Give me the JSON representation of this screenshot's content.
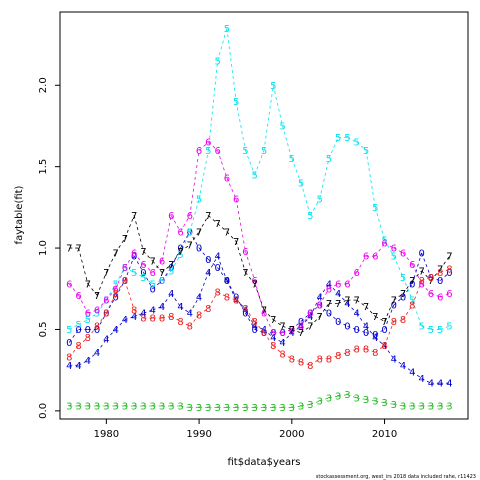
{
  "chart_data": {
    "type": "line",
    "xlabel": "fit$data$years",
    "ylabel": "faytable(fit)",
    "xlim": [
      1975,
      2019
    ],
    "ylim": [
      -0.05,
      2.45
    ],
    "x_ticks": [
      "1980",
      "1990",
      "2000",
      "2010"
    ],
    "y_ticks": [
      "0.0",
      "0.5",
      "1.0",
      "1.5",
      "2.0"
    ],
    "x_tick_values": [
      1980,
      1990,
      2000,
      2010
    ],
    "y_tick_values": [
      0.0,
      0.5,
      1.0,
      1.5,
      2.0
    ],
    "footnote": "stockassessment.org, west_irs 2018 data included rahe, r11423",
    "x": [
      1976,
      1977,
      1978,
      1979,
      1980,
      1981,
      1982,
      1983,
      1984,
      1985,
      1986,
      1987,
      1988,
      1989,
      1990,
      1991,
      1992,
      1993,
      1994,
      1995,
      1996,
      1997,
      1998,
      1999,
      2000,
      2001,
      2002,
      2003,
      2004,
      2005,
      2006,
      2007,
      2008,
      2009,
      2010,
      2011,
      2012,
      2013,
      2014,
      2015,
      2016,
      2017
    ],
    "series": [
      {
        "symbol": "0",
        "color": "#0000cd",
        "values": [
          0.42,
          0.5,
          0.5,
          0.5,
          0.6,
          0.7,
          0.8,
          0.95,
          0.85,
          0.75,
          0.8,
          0.88,
          1.0,
          1.1,
          1.0,
          0.93,
          0.88,
          0.8,
          0.7,
          0.6,
          0.5,
          0.48,
          0.48,
          0.48,
          0.5,
          0.55,
          0.6,
          0.65,
          0.6,
          0.55,
          0.52,
          0.5,
          0.48,
          0.47,
          0.5,
          0.65,
          0.7,
          0.78,
          0.97,
          0.82,
          0.8,
          0.85
        ]
      },
      {
        "symbol": "3",
        "color": "#22bb22",
        "values": [
          0.03,
          0.03,
          0.03,
          0.03,
          0.03,
          0.03,
          0.03,
          0.03,
          0.03,
          0.03,
          0.03,
          0.03,
          0.03,
          0.02,
          0.02,
          0.02,
          0.02,
          0.02,
          0.02,
          0.02,
          0.02,
          0.02,
          0.02,
          0.02,
          0.02,
          0.03,
          0.04,
          0.06,
          0.08,
          0.09,
          0.1,
          0.08,
          0.07,
          0.06,
          0.05,
          0.04,
          0.03,
          0.03,
          0.03,
          0.03,
          0.03,
          0.03
        ]
      },
      {
        "symbol": "4",
        "color": "#0000cd",
        "values": [
          0.28,
          0.28,
          0.31,
          0.36,
          0.44,
          0.5,
          0.56,
          0.58,
          0.6,
          0.62,
          0.64,
          0.72,
          0.64,
          0.6,
          0.7,
          0.85,
          0.95,
          0.8,
          0.68,
          0.62,
          0.52,
          0.5,
          0.45,
          0.42,
          0.48,
          0.52,
          0.58,
          0.7,
          0.78,
          0.72,
          0.66,
          0.6,
          0.52,
          0.45,
          0.4,
          0.32,
          0.28,
          0.24,
          0.2,
          0.17,
          0.17,
          0.17
        ]
      },
      {
        "symbol": "5",
        "color": "#00e5ee",
        "values": [
          0.5,
          0.53,
          0.56,
          0.6,
          0.68,
          0.78,
          0.88,
          0.85,
          0.82,
          0.78,
          0.8,
          0.86,
          0.96,
          1.1,
          1.3,
          1.6,
          2.15,
          2.35,
          1.9,
          1.6,
          1.45,
          1.6,
          2.0,
          1.75,
          1.55,
          1.4,
          1.2,
          1.3,
          1.55,
          1.68,
          1.68,
          1.65,
          1.6,
          1.25,
          1.05,
          0.95,
          0.82,
          0.68,
          0.52,
          0.5,
          0.5,
          0.52
        ]
      },
      {
        "symbol": "6",
        "color": "#ee00ee",
        "values": [
          0.78,
          0.71,
          0.6,
          0.62,
          0.68,
          0.75,
          0.88,
          0.97,
          0.9,
          0.85,
          0.92,
          1.2,
          1.1,
          1.2,
          1.6,
          1.65,
          1.6,
          1.43,
          1.3,
          0.98,
          0.8,
          0.6,
          0.48,
          0.48,
          0.5,
          0.52,
          0.6,
          0.65,
          0.75,
          0.78,
          0.78,
          0.85,
          0.95,
          0.95,
          1.03,
          1.0,
          0.97,
          0.9,
          0.78,
          0.72,
          0.7,
          0.72
        ]
      },
      {
        "symbol": "7",
        "color": "#000000",
        "values": [
          1.0,
          1.0,
          0.78,
          0.71,
          0.85,
          0.97,
          1.06,
          1.2,
          0.98,
          0.92,
          0.85,
          0.9,
          0.98,
          1.02,
          1.1,
          1.2,
          1.15,
          1.1,
          1.04,
          0.85,
          0.78,
          0.62,
          0.56,
          0.52,
          0.5,
          0.48,
          0.52,
          0.58,
          0.66,
          0.66,
          0.68,
          0.68,
          0.64,
          0.58,
          0.55,
          0.68,
          0.72,
          0.8,
          0.86,
          0.8,
          0.87,
          0.95
        ]
      },
      {
        "symbol": "8",
        "color": "#ee2222",
        "values": [
          0.33,
          0.4,
          0.45,
          0.52,
          0.6,
          0.72,
          0.8,
          0.62,
          0.57,
          0.57,
          0.57,
          0.58,
          0.55,
          0.52,
          0.59,
          0.63,
          0.73,
          0.7,
          0.68,
          0.63,
          0.55,
          0.48,
          0.4,
          0.35,
          0.32,
          0.3,
          0.28,
          0.32,
          0.32,
          0.34,
          0.36,
          0.38,
          0.38,
          0.36,
          0.4,
          0.55,
          0.56,
          0.65,
          0.8,
          0.82,
          0.85,
          0.87
        ]
      }
    ]
  }
}
